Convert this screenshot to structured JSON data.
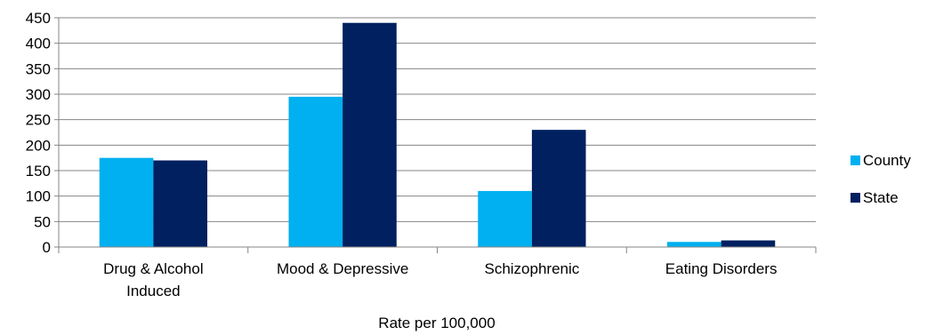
{
  "chart_data": {
    "type": "bar",
    "title": "",
    "xlabel": "Rate per 100,000",
    "ylabel": "",
    "ylim": [
      0,
      450
    ],
    "yticks": [
      0,
      50,
      100,
      150,
      200,
      250,
      300,
      350,
      400,
      450
    ],
    "grid": true,
    "legend_position": "right",
    "categories": [
      [
        "Drug & Alcohol",
        "Induced"
      ],
      [
        "Mood & Depressive"
      ],
      [
        "Schizophrenic"
      ],
      [
        "Eating Disorders"
      ]
    ],
    "series": [
      {
        "name": "County",
        "color": "#00b0f0",
        "values": [
          175,
          295,
          110,
          10
        ]
      },
      {
        "name": "State",
        "color": "#002060",
        "values": [
          170,
          440,
          230,
          13
        ]
      }
    ]
  }
}
